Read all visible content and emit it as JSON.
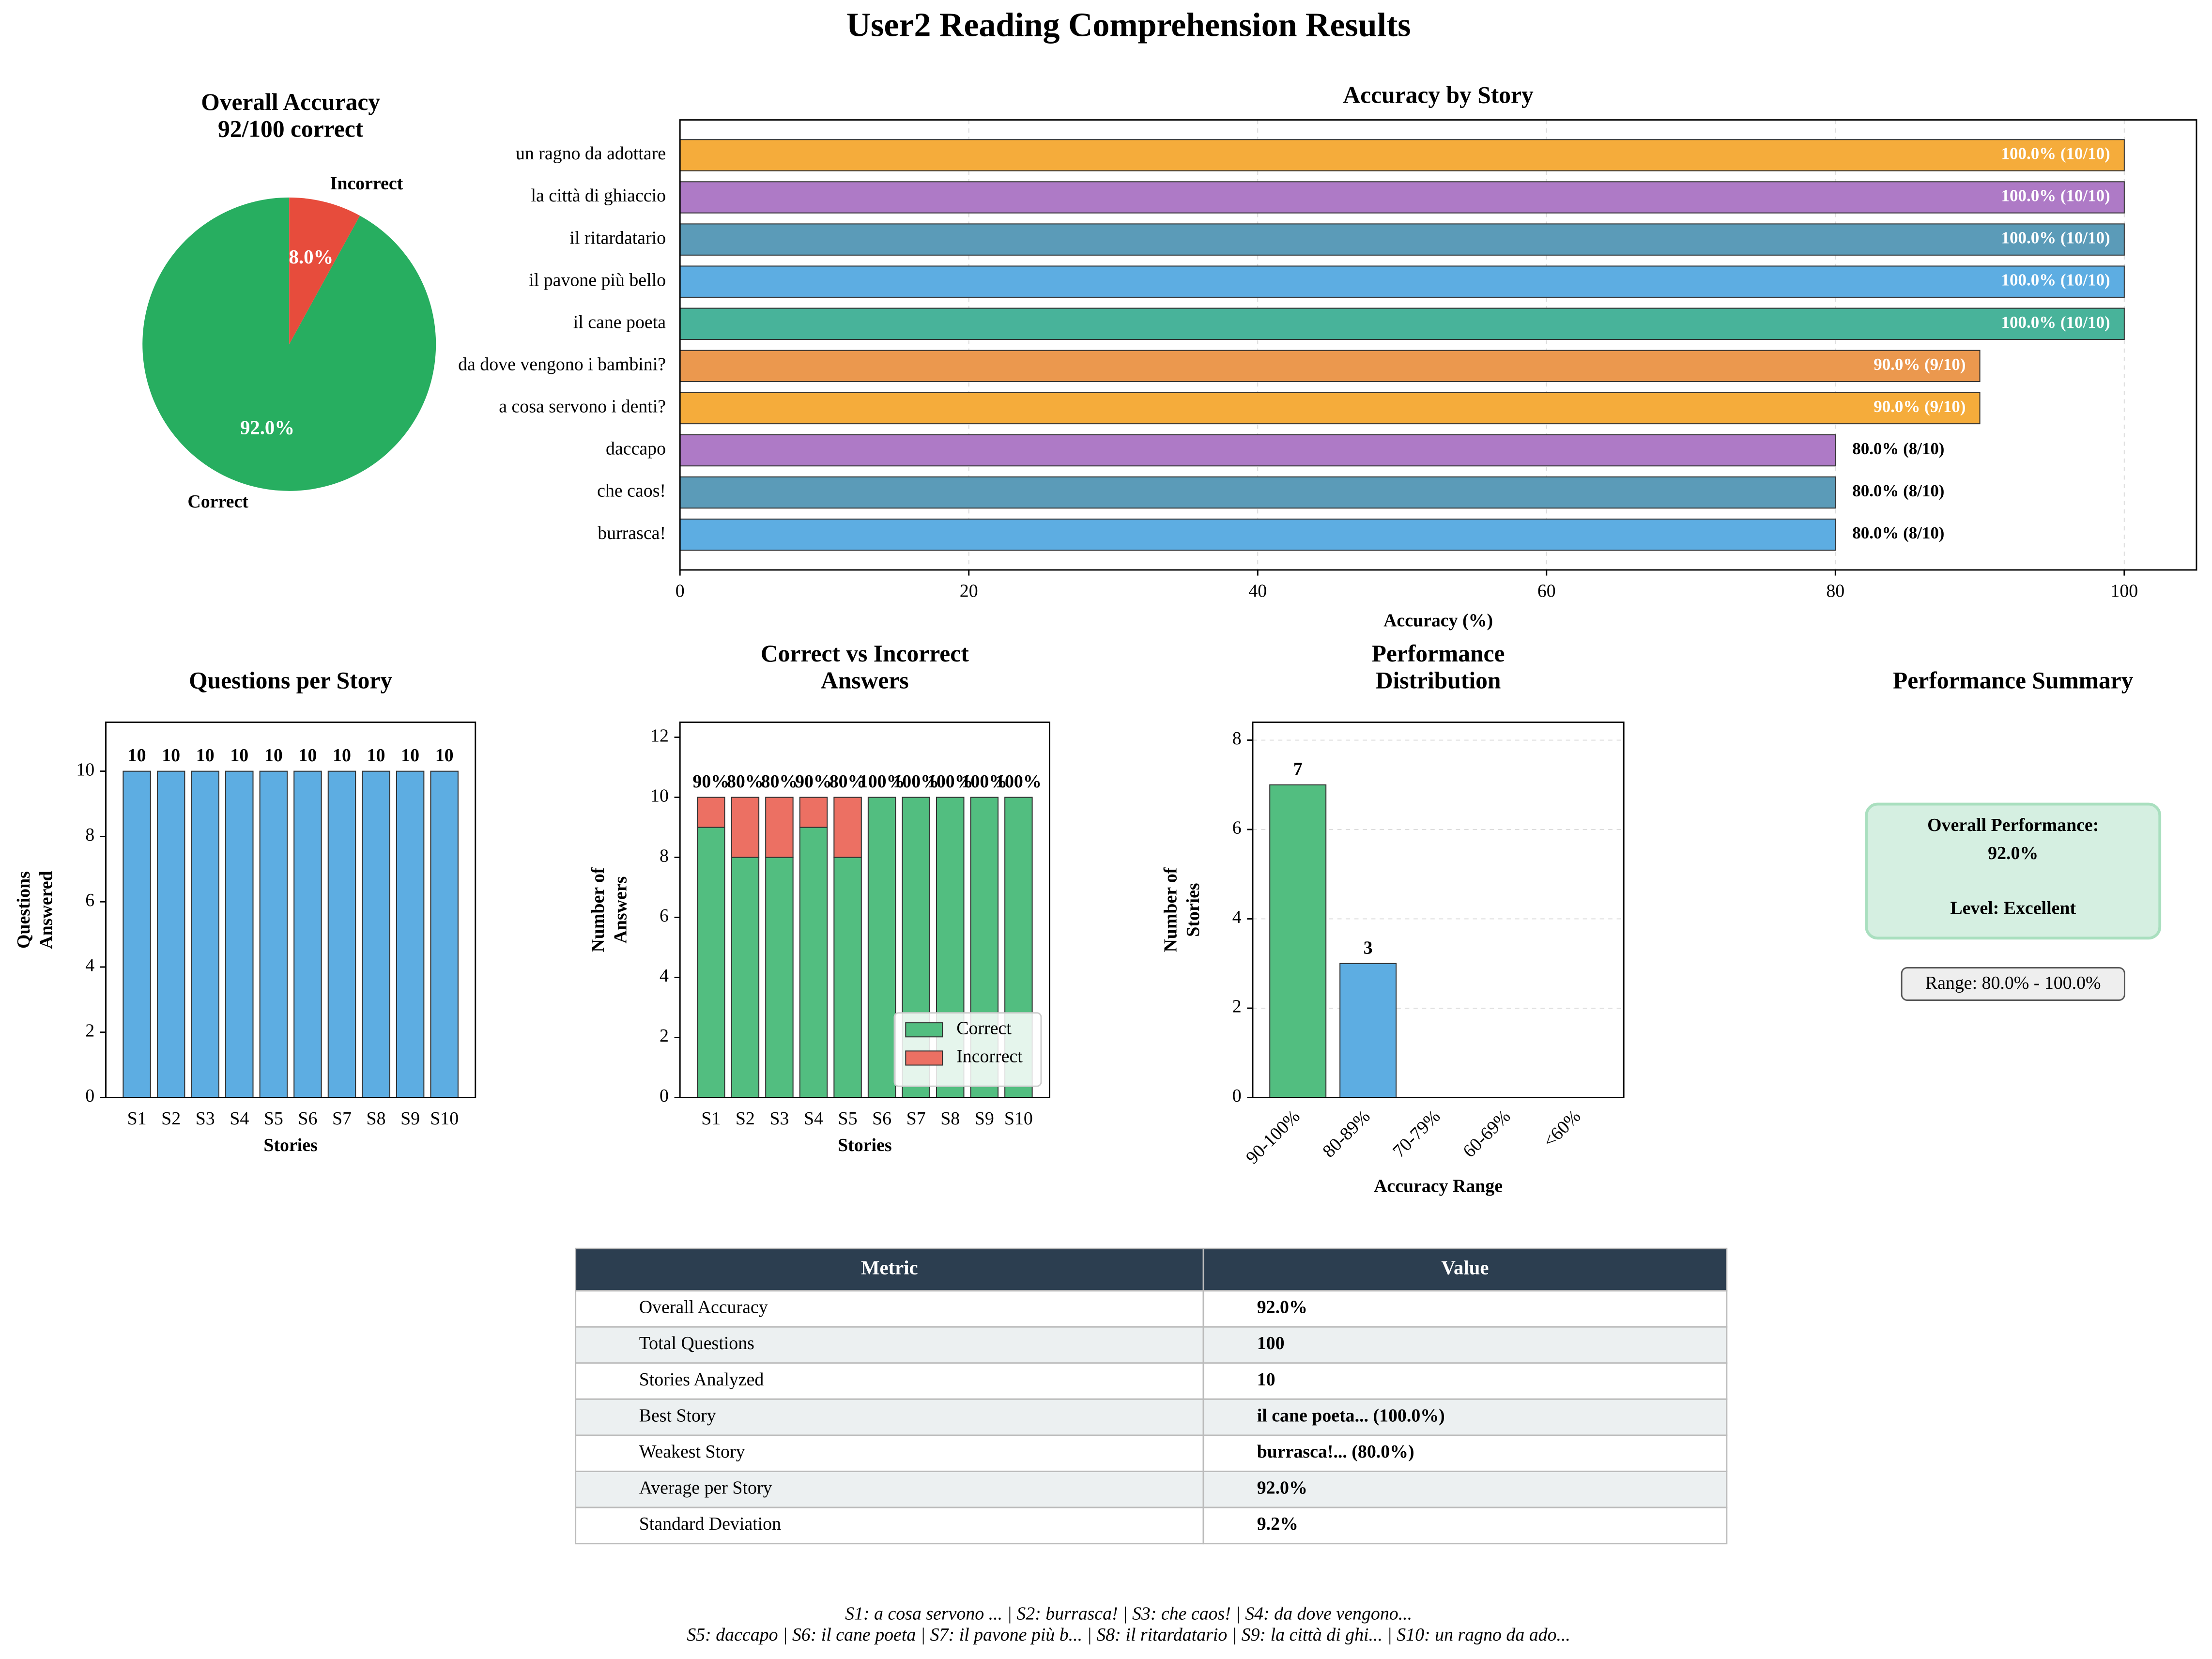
{
  "title": "User2 Reading Comprehension Results",
  "chart_data": [
    {
      "type": "pie",
      "title": [
        "Overall Accuracy",
        "92/100 correct"
      ],
      "categories": [
        "Correct",
        "Incorrect"
      ],
      "values": [
        92,
        8
      ],
      "value_labels": [
        "92.0%",
        "8.0%"
      ],
      "colors": [
        "#27ae60",
        "#e74c3c"
      ]
    },
    {
      "type": "barh",
      "title": [
        "Accuracy by Story"
      ],
      "xlabel": "Accuracy (%)",
      "categories": [
        "burrasca!",
        "che caos!",
        "daccapo",
        "a cosa servono i denti?",
        "da dove vengono i bambini?",
        "il cane poeta",
        "il pavone più bello",
        "il ritardatario",
        "la città di ghiaccio",
        "un ragno da adottare"
      ],
      "values": [
        80,
        80,
        80,
        90,
        90,
        100,
        100,
        100,
        100,
        100
      ],
      "value_labels": [
        "80.0% (8/10)",
        "80.0% (8/10)",
        "80.0% (8/10)",
        "90.0% (9/10)",
        "90.0% (9/10)",
        "100.0% (10/10)",
        "100.0% (10/10)",
        "100.0% (10/10)",
        "100.0% (10/10)",
        "100.0% (10/10)"
      ],
      "colors": [
        "#5dade2",
        "#5b9bb8",
        "#ae7ac6",
        "#f5ac3b",
        "#eb984e",
        "#48b39a",
        "#5dade2",
        "#5b9bb8",
        "#ae7ac6",
        "#f5ac3b"
      ],
      "xlim": [
        0,
        105
      ],
      "xticks": [
        0,
        20,
        40,
        60,
        80,
        100
      ],
      "grid": true
    },
    {
      "type": "bar",
      "title": [
        "Questions per Story"
      ],
      "xlabel": "Stories",
      "ylabel": [
        "Questions",
        "Answered"
      ],
      "categories": [
        "S1",
        "S2",
        "S3",
        "S4",
        "S5",
        "S6",
        "S7",
        "S8",
        "S9",
        "S10"
      ],
      "values": [
        10,
        10,
        10,
        10,
        10,
        10,
        10,
        10,
        10,
        10
      ],
      "color": "#5dade2",
      "bar_labels": true,
      "ylim": [
        0,
        11.5
      ],
      "yticks": [
        0,
        2,
        4,
        6,
        8,
        10
      ],
      "grid": false
    },
    {
      "type": "stacked_bar",
      "title": [
        "Correct vs Incorrect",
        "Answers"
      ],
      "xlabel": "Stories",
      "ylabel": [
        "Number of",
        "Answers"
      ],
      "categories": [
        "S1",
        "S2",
        "S3",
        "S4",
        "S5",
        "S6",
        "S7",
        "S8",
        "S9",
        "S10"
      ],
      "series": [
        {
          "name": "Correct",
          "color": "#52be80",
          "values": [
            9,
            8,
            8,
            9,
            8,
            10,
            10,
            10,
            10,
            10
          ]
        },
        {
          "name": "Incorrect",
          "color": "#ec7063",
          "values": [
            1,
            2,
            2,
            1,
            2,
            0,
            0,
            0,
            0,
            0
          ]
        }
      ],
      "top_labels": [
        "90%",
        "80%",
        "80%",
        "90%",
        "80%",
        "100%",
        "100%",
        "100%",
        "100%",
        "100%"
      ],
      "ylim": [
        0,
        12.5
      ],
      "yticks": [
        0,
        2,
        4,
        6,
        8,
        10,
        12
      ],
      "grid": false,
      "legend": "lower-right"
    },
    {
      "type": "bar",
      "title": [
        "Performance",
        "Distribution"
      ],
      "xlabel": "Accuracy Range",
      "ylabel": [
        "Number of",
        "Stories"
      ],
      "categories": [
        "90-100%",
        "80-89%",
        "70-79%",
        "60-69%",
        "<60%"
      ],
      "values": [
        7,
        3,
        0,
        0,
        0
      ],
      "colors": [
        "#52be80",
        "#5dade2",
        "#f5b041",
        "#ec7063",
        "#c0392b"
      ],
      "bar_labels": true,
      "ylim": [
        0,
        8.4
      ],
      "yticks": [
        0,
        2,
        4,
        6,
        8
      ],
      "grid": true,
      "xtick_rotation": 45
    }
  ],
  "summary": {
    "title": "Performance Summary",
    "lines": [
      "Overall Performance:",
      "92.0%",
      "Level: Excellent"
    ],
    "range": "Range: 80.0% - 100.0%"
  },
  "table": {
    "header": [
      "Metric",
      "Value"
    ],
    "rows": [
      [
        "Overall Accuracy",
        "92.0%"
      ],
      [
        "Total Questions",
        "100"
      ],
      [
        "Stories Analyzed",
        "10"
      ],
      [
        "Best Story",
        "il cane poeta... (100.0%)"
      ],
      [
        "Weakest Story",
        "burrasca!... (80.0%)"
      ],
      [
        "Average per Story",
        "92.0%"
      ],
      [
        "Standard Deviation",
        "9.2%"
      ]
    ]
  },
  "footnote": [
    "S1: a cosa servono ... | S2: burrasca! | S3: che caos! | S4: da dove vengono...",
    "S5: daccapo | S6: il cane poeta | S7: il pavone più b... | S8: il ritardatario | S9: la città di ghi... | S10: un ragno da ado..."
  ]
}
